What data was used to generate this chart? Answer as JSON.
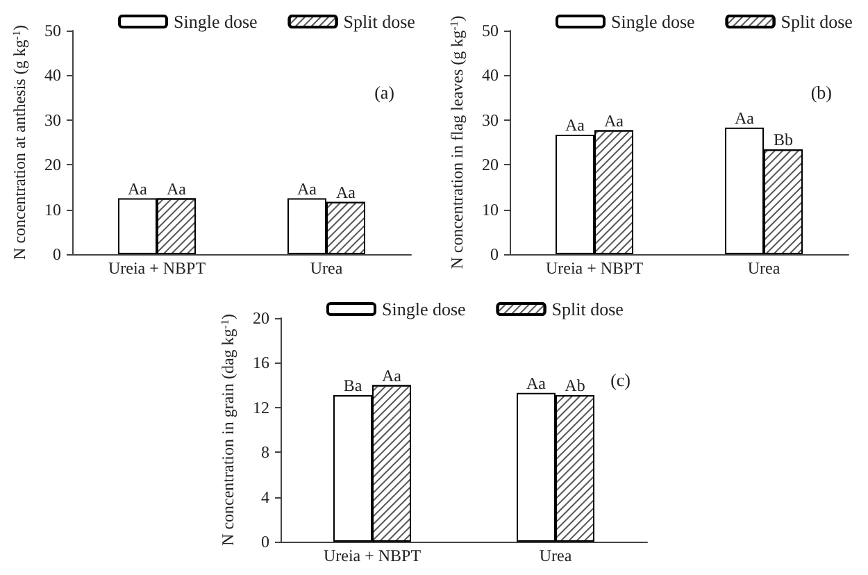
{
  "chart_data": [
    {
      "type": "bar",
      "ylabel": "N concentration at anthesis (g kg$^{-1}$)",
      "categories": [
        "Ureia + NBPT",
        "Urea"
      ],
      "ylim": [
        0,
        50
      ],
      "yticks": [
        0,
        10,
        20,
        30,
        40,
        50
      ],
      "grid": false,
      "legend": "top",
      "annotations": [
        "(a)"
      ],
      "series": [
        {
          "name": "Single dose",
          "color": "#ffffff",
          "values": [
            12.5,
            12.5
          ],
          "value_labels": [
            "Aa",
            "Aa"
          ]
        },
        {
          "name": "Split dose",
          "color": "#ffffff",
          "values": [
            12.5,
            11.7
          ],
          "value_labels": [
            "Aa",
            "Aa"
          ]
        }
      ]
    },
    {
      "type": "bar",
      "ylabel": "N concentration in flag leaves (g kg$^{-1}$)",
      "categories": [
        "Ureia + NBPT",
        "Urea"
      ],
      "ylim": [
        0,
        50
      ],
      "yticks": [
        0,
        10,
        20,
        30,
        40,
        50
      ],
      "grid": false,
      "legend": "top",
      "annotations": [
        "(b)"
      ],
      "series": [
        {
          "name": "Single dose",
          "color": "#ffffff",
          "values": [
            26.7,
            28.3
          ],
          "value_labels": [
            "Aa",
            "Aa"
          ]
        },
        {
          "name": "Split dose",
          "color": "#ffffff",
          "values": [
            27.7,
            23.4
          ],
          "value_labels": [
            "Aa",
            "Bb"
          ]
        }
      ]
    },
    {
      "type": "bar",
      "ylabel": "N concentration in grain (dag kg$^{-1}$)",
      "categories": [
        "Ureia + NBPT",
        "Urea"
      ],
      "ylim": [
        0,
        20
      ],
      "yticks": [
        0,
        4,
        8,
        12,
        16,
        20
      ],
      "grid": false,
      "legend": "top",
      "annotations": [
        "(c)"
      ],
      "series": [
        {
          "name": "Single dose",
          "color": "#ffffff",
          "values": [
            13.1,
            13.3
          ],
          "value_labels": [
            "Ba",
            "Aa"
          ]
        },
        {
          "name": "Split dose",
          "color": "#ffffff",
          "values": [
            14.0,
            13.1
          ],
          "value_labels": [
            "Aa",
            "Ab"
          ]
        }
      ]
    }
  ]
}
